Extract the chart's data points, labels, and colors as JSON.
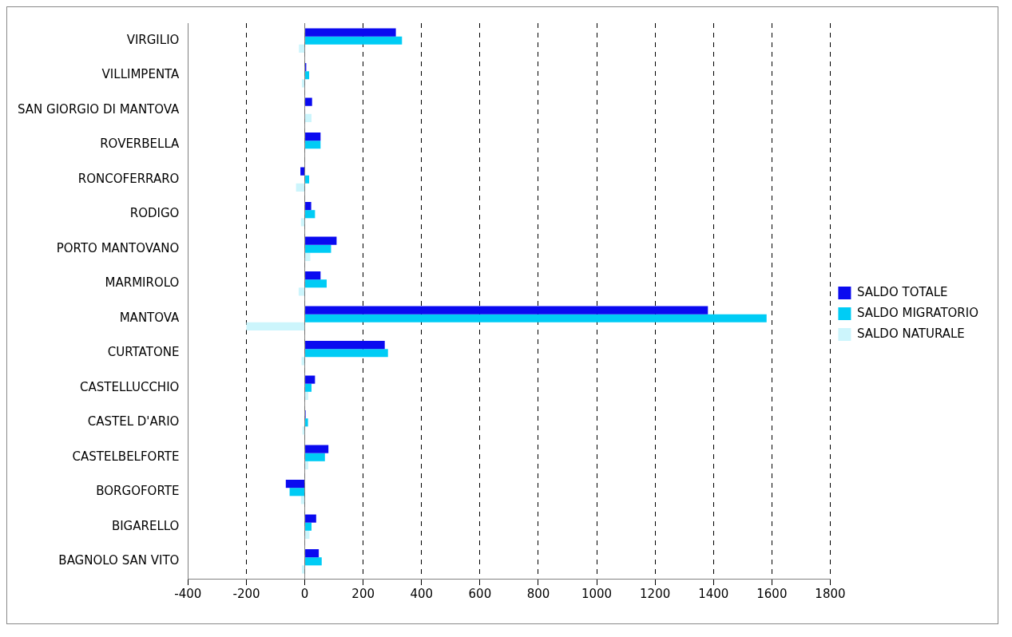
{
  "chart_data": {
    "type": "bar",
    "orientation": "horizontal",
    "categories": [
      "VIRGILIO",
      "VILLIMPENTA",
      "SAN GIORGIO DI MANTOVA",
      "ROVERBELLA",
      "RONCOFERRARO",
      "RODIGO",
      "PORTO MANTOVANO",
      "MARMIROLO",
      "MANTOVA",
      "CURTATONE",
      "CASTELLUCCHIO",
      "CASTEL D'ARIO",
      "CASTELBELFORTE",
      "BORGOFORTE",
      "BIGARELLO",
      "BAGNOLO SAN VITO"
    ],
    "series": [
      {
        "name": "SALDO TOTALE",
        "color": "#0a0af0",
        "values": [
          312,
          5,
          25,
          54,
          -15,
          22,
          109,
          54,
          1381,
          274,
          35,
          3,
          81,
          -65,
          39,
          48
        ]
      },
      {
        "name": "SALDO MIGRATORIO",
        "color": "#00ccf5",
        "values": [
          333,
          15,
          null,
          54,
          15,
          35,
          90,
          75,
          1582,
          285,
          23,
          11,
          69,
          -52,
          23,
          58
        ]
      },
      {
        "name": "SALDO NATURALE",
        "color": "#ccf5fc",
        "values": [
          -20,
          -10,
          23,
          0,
          -30,
          -13,
          19,
          -21,
          -200,
          -11,
          12,
          -8,
          12,
          -13,
          16,
          -10
        ]
      }
    ],
    "xlim": [
      -400,
      1800
    ],
    "xticks": [
      -400,
      -200,
      0,
      200,
      400,
      600,
      800,
      1000,
      1200,
      1400,
      1600,
      1800
    ],
    "grid": "x",
    "legend": "right"
  }
}
